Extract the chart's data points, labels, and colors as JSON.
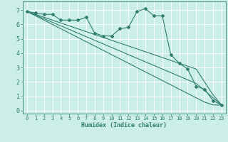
{
  "xlabel": "Humidex (Indice chaleur)",
  "background_color": "#cceee8",
  "line_color": "#2e7d6e",
  "grid_color": "#ffffff",
  "xlim": [
    -0.5,
    23.5
  ],
  "ylim": [
    -0.2,
    7.6
  ],
  "xticks": [
    0,
    1,
    2,
    3,
    4,
    5,
    6,
    7,
    8,
    9,
    10,
    11,
    12,
    13,
    14,
    15,
    16,
    17,
    18,
    19,
    20,
    21,
    22,
    23
  ],
  "yticks": [
    0,
    1,
    2,
    3,
    4,
    5,
    6,
    7
  ],
  "series": [
    [
      6.9,
      6.8,
      6.7,
      6.7,
      6.3,
      6.3,
      6.3,
      6.5,
      5.4,
      5.2,
      5.2,
      5.7,
      5.8,
      6.9,
      7.1,
      6.6,
      6.6,
      3.9,
      3.3,
      2.9,
      1.7,
      1.5,
      0.7,
      0.4
    ],
    [
      6.9,
      6.7,
      6.5,
      6.3,
      6.1,
      5.9,
      5.7,
      5.5,
      5.3,
      5.1,
      4.9,
      4.7,
      4.5,
      4.3,
      4.1,
      3.9,
      3.7,
      3.5,
      3.3,
      3.1,
      2.9,
      2.0,
      1.1,
      0.4
    ],
    [
      6.9,
      6.65,
      6.4,
      6.15,
      5.9,
      5.65,
      5.4,
      5.15,
      4.9,
      4.65,
      4.4,
      4.15,
      3.9,
      3.65,
      3.4,
      3.15,
      2.9,
      2.65,
      2.4,
      2.15,
      1.9,
      1.4,
      0.9,
      0.4
    ],
    [
      6.9,
      6.6,
      6.3,
      6.0,
      5.7,
      5.4,
      5.1,
      4.8,
      4.5,
      4.2,
      3.9,
      3.6,
      3.3,
      3.0,
      2.7,
      2.4,
      2.1,
      1.8,
      1.5,
      1.2,
      0.9,
      0.6,
      0.4,
      0.4
    ]
  ],
  "tick_fontsize": 5,
  "xlabel_fontsize": 6,
  "marker_size": 2.0,
  "linewidth": 0.8
}
